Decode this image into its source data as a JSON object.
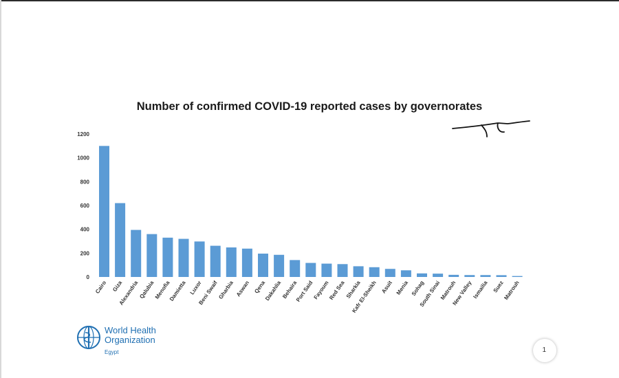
{
  "chart_data": {
    "type": "bar",
    "title": "Number of confirmed COVID-19 reported cases by governorates",
    "xlabel": "",
    "ylabel": "",
    "ylim": [
      0,
      1200
    ],
    "yticks": [
      0,
      200,
      400,
      600,
      800,
      1000,
      1200
    ],
    "bar_color": "#5b9bd5",
    "categories": [
      "Cairo",
      "Giza",
      "Alexandria",
      "Qalubia",
      "Menofia",
      "Damietta",
      "Luxor",
      "Beni Swaif",
      "Gharbia",
      "Aswan",
      "Qena",
      "Dakahlia",
      "Behaira",
      "Port Said",
      "Fayoum",
      "Red Sea",
      "Sharkia",
      "Kafr El-Sheikh",
      "Asuit",
      "Menia",
      "Sohag",
      "South Sinai",
      "Matrouh",
      "New Valley",
      "Ismailia",
      "Suez",
      "Matrouh"
    ],
    "values": [
      1100,
      620,
      395,
      360,
      330,
      320,
      298,
      262,
      248,
      238,
      196,
      186,
      142,
      118,
      112,
      108,
      90,
      82,
      68,
      56,
      30,
      28,
      18,
      16,
      16,
      15,
      8
    ]
  },
  "logo": {
    "line1": "World Health",
    "line2": "Organization",
    "line3": "Egypt",
    "icon": "who-emblem-icon"
  },
  "page_button": {
    "label": "1",
    "icon": "page-number"
  }
}
